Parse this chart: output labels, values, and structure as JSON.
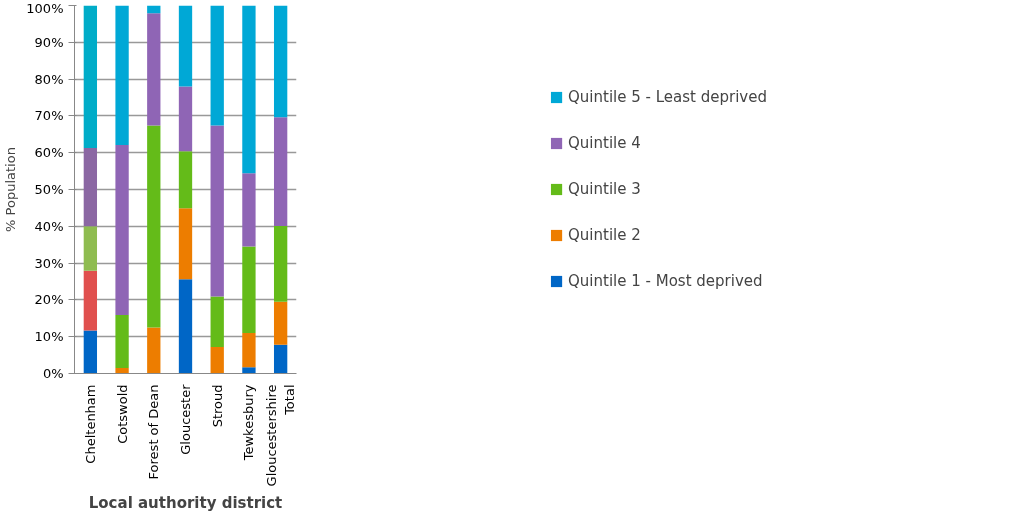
{
  "chart_data": {
    "type": "bar",
    "stacked": true,
    "xlabel": "Local authority district",
    "ylabel": "% Population",
    "categories": [
      "Cheltenham",
      "Cotswold",
      "Forest of Dean",
      "Gloucester",
      "Stroud",
      "Tewkesbury",
      "Gloucestershire Total"
    ],
    "series": [
      {
        "name": "Quintile 1 - Most deprived",
        "color": "#0066c6",
        "colors": [
          "#0066c6",
          "#0066c6",
          "#0066c6",
          "#0066c6",
          "#0066c6",
          "#0066c6",
          "#0066c6"
        ],
        "values": [
          11.7,
          0,
          0,
          25.6,
          0,
          1.7,
          7.8
        ]
      },
      {
        "name": "Quintile 2",
        "color": "#ed7d00",
        "colors": [
          "#e0504e",
          "#ed7d00",
          "#ed7d00",
          "#ed7d00",
          "#ed7d00",
          "#ed7d00",
          "#ed7d00"
        ],
        "values": [
          16.2,
          1.5,
          12.5,
          19.3,
          7.2,
          9.3,
          11.7
        ]
      },
      {
        "name": "Quintile 3",
        "color": "#64bb19",
        "colors": [
          "#8fbc50",
          "#64bb19",
          "#64bb19",
          "#64bb19",
          "#64bb19",
          "#64bb19",
          "#64bb19"
        ],
        "values": [
          12.1,
          14.4,
          54.9,
          15.5,
          13.7,
          23.5,
          20.6
        ]
      },
      {
        "name": "Quintile 4",
        "color": "#8f65b5",
        "colors": [
          "#8b67a3",
          "#8f65b5",
          "#8f65b5",
          "#8f65b5",
          "#8f65b5",
          "#8f65b5",
          "#8f65b5"
        ],
        "values": [
          21.3,
          46.2,
          30.5,
          17.6,
          46.5,
          19.9,
          29.5
        ]
      },
      {
        "name": "Quintile 5 - Least deprived",
        "color": "#00a8d6",
        "colors": [
          "#00acc8",
          "#00a8d6",
          "#00a8d6",
          "#00a8d6",
          "#00a8d6",
          "#00a8d6",
          "#00a8d6"
        ],
        "values": [
          38.7,
          37.9,
          2.1,
          22.0,
          32.6,
          45.6,
          30.4
        ]
      }
    ],
    "ylim": [
      0,
      100
    ],
    "yticks": [
      {
        "value": 0,
        "label": "0%"
      },
      {
        "value": 10,
        "label": "10%"
      },
      {
        "value": 20,
        "label": "20%"
      },
      {
        "value": 30,
        "label": "30%"
      },
      {
        "value": 40,
        "label": "40%"
      },
      {
        "value": 50,
        "label": "50%"
      },
      {
        "value": 60,
        "label": "60%"
      },
      {
        "value": 70,
        "label": "70%"
      },
      {
        "value": 80,
        "label": "80%"
      },
      {
        "value": 90,
        "label": "90%"
      },
      {
        "value": 100,
        "label": "100%"
      }
    ],
    "grid": "y",
    "legend": "right"
  }
}
